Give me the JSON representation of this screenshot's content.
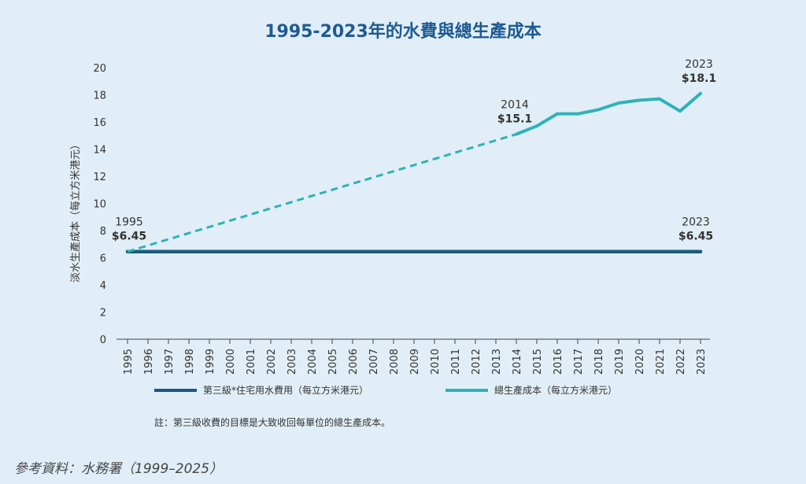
{
  "colors": {
    "background": "#e1eef7",
    "title": "#1e5a93",
    "tariff_line": "#1b5a7e",
    "cost_line": "#2eb2b8",
    "axis": "#444444"
  },
  "footer": {
    "note": "註：第三級收費的目標是大致收回每單位的總生產成本。",
    "source": "參考資料：水務署（1999–2025）"
  },
  "chart_data": {
    "type": "line",
    "title": "1995-2023年的水費與總生產成本",
    "ylabel": "淡水生產成本（每立方米港元）",
    "xlabel": "",
    "ylim": [
      0,
      20
    ],
    "yticks": [
      "0",
      "2",
      "4",
      "6",
      "8",
      "10",
      "12",
      "14",
      "16",
      "18",
      "20"
    ],
    "grid": false,
    "legend_position": "bottom",
    "x": [
      "1995",
      "1996",
      "1997",
      "1998",
      "1999",
      "2000",
      "2001",
      "2002",
      "2003",
      "2004",
      "2005",
      "2006",
      "2007",
      "2008",
      "2009",
      "2010",
      "2011",
      "2012",
      "2013",
      "2014",
      "2015",
      "2016",
      "2017",
      "2018",
      "2019",
      "2020",
      "2021",
      "2022",
      "2023"
    ],
    "series": [
      {
        "name": "第三級*住宅用水費用（每立方米港元）",
        "color": "#1b5a7e",
        "style": "solid",
        "values": [
          6.45,
          6.45,
          6.45,
          6.45,
          6.45,
          6.45,
          6.45,
          6.45,
          6.45,
          6.45,
          6.45,
          6.45,
          6.45,
          6.45,
          6.45,
          6.45,
          6.45,
          6.45,
          6.45,
          6.45,
          6.45,
          6.45,
          6.45,
          6.45,
          6.45,
          6.45,
          6.45,
          6.45,
          6.45
        ]
      },
      {
        "name": "總生產成本（每立方米港元）",
        "color": "#2eb2b8",
        "dashed_segment": {
          "x": [
            "1995",
            "2014"
          ],
          "y": [
            6.45,
            15.1
          ]
        },
        "solid_segment": {
          "x": [
            "2014",
            "2015",
            "2016",
            "2017",
            "2018",
            "2019",
            "2020",
            "2021",
            "2022",
            "2023"
          ],
          "y": [
            15.1,
            15.7,
            16.6,
            16.6,
            16.9,
            17.4,
            17.6,
            17.7,
            16.8,
            18.1
          ]
        }
      }
    ],
    "annotations": [
      {
        "year": "1995",
        "label": "1995",
        "value_label": "$6.45",
        "y": 6.45
      },
      {
        "year": "2014",
        "label": "2014",
        "value_label": "$15.1",
        "y": 15.1
      },
      {
        "year": "2023",
        "label": "2023",
        "value_label": "$18.1",
        "y": 18.1
      },
      {
        "year": "2023",
        "label": "2023",
        "value_label": "$6.45",
        "y": 6.45
      }
    ]
  }
}
